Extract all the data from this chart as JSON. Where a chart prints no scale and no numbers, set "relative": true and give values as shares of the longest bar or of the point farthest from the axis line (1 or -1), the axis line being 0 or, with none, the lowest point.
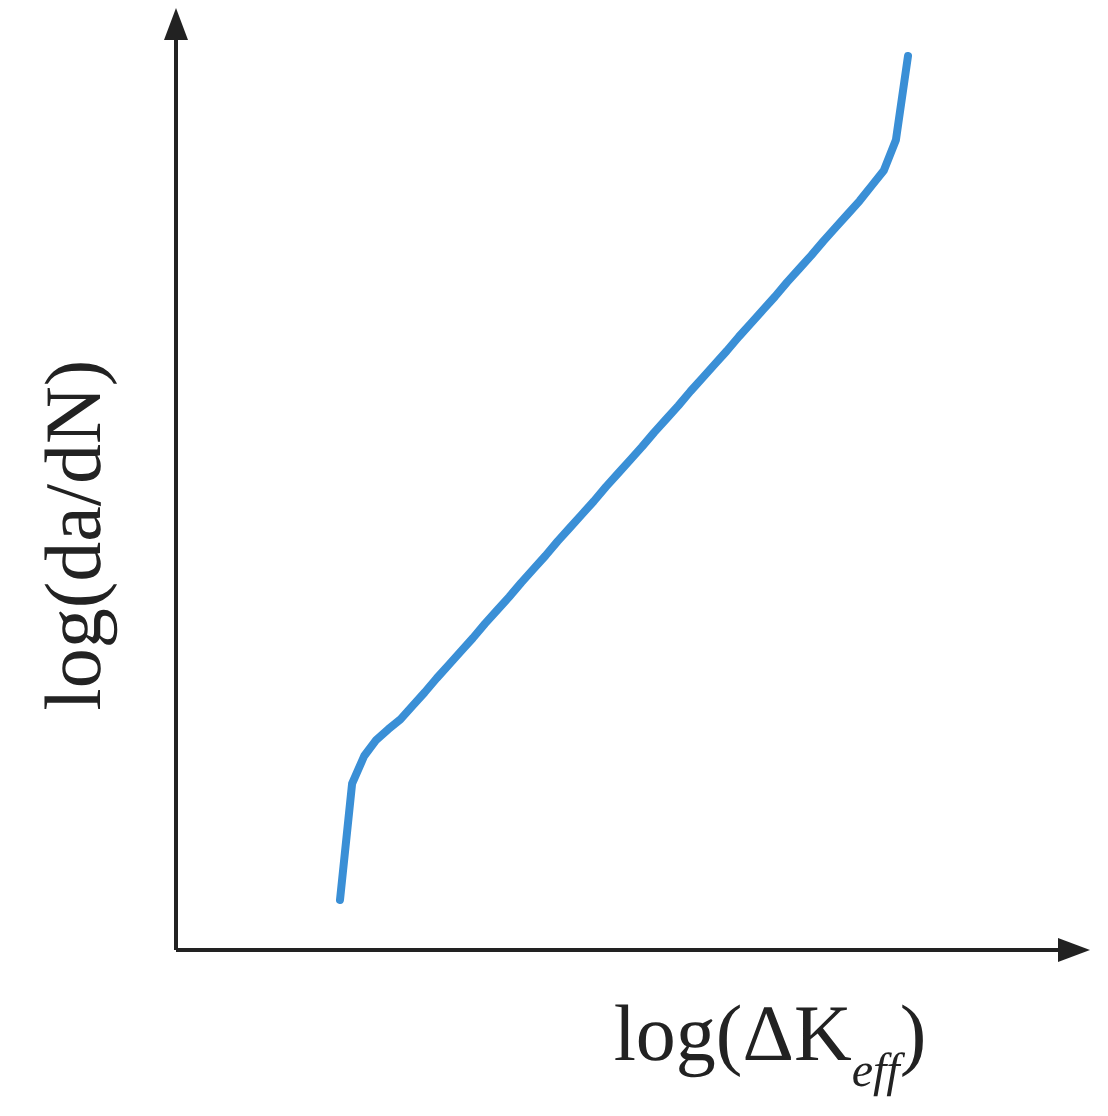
{
  "chart_data": {
    "type": "line",
    "relative": true,
    "xlabel": "log(ΔK$_{eff}$)",
    "ylabel": "log(da/dN)",
    "marker": "none",
    "line_style": "solid",
    "categories": [
      null,
      null,
      null,
      null,
      null,
      null,
      null,
      null,
      null,
      null,
      null,
      null,
      null,
      null,
      null,
      null,
      null,
      null,
      null,
      null,
      null,
      null,
      null,
      null,
      null,
      null,
      null,
      null,
      null,
      null,
      null,
      null,
      null,
      null,
      null,
      null,
      null,
      null,
      null,
      null,
      null,
      null,
      null,
      null,
      null,
      null,
      null,
      null
    ],
    "series": [
      {
        "color": "#3a8fd6",
        "values": [
          0.056,
          0.186,
          0.217,
          0.235,
          0.247,
          0.258,
          0.273,
          0.288,
          0.304,
          0.319,
          0.334,
          0.349,
          0.365,
          0.38,
          0.395,
          0.411,
          0.426,
          0.441,
          0.457,
          0.472,
          0.487,
          0.502,
          0.518,
          0.533,
          0.548,
          0.563,
          0.579,
          0.594,
          0.609,
          0.625,
          0.64,
          0.655,
          0.67,
          0.686,
          0.701,
          0.716,
          0.731,
          0.747,
          0.762,
          0.777,
          0.793,
          0.808,
          0.823,
          0.838,
          0.855,
          0.872,
          0.906,
          1.0
        ]
      }
    ]
  }
}
